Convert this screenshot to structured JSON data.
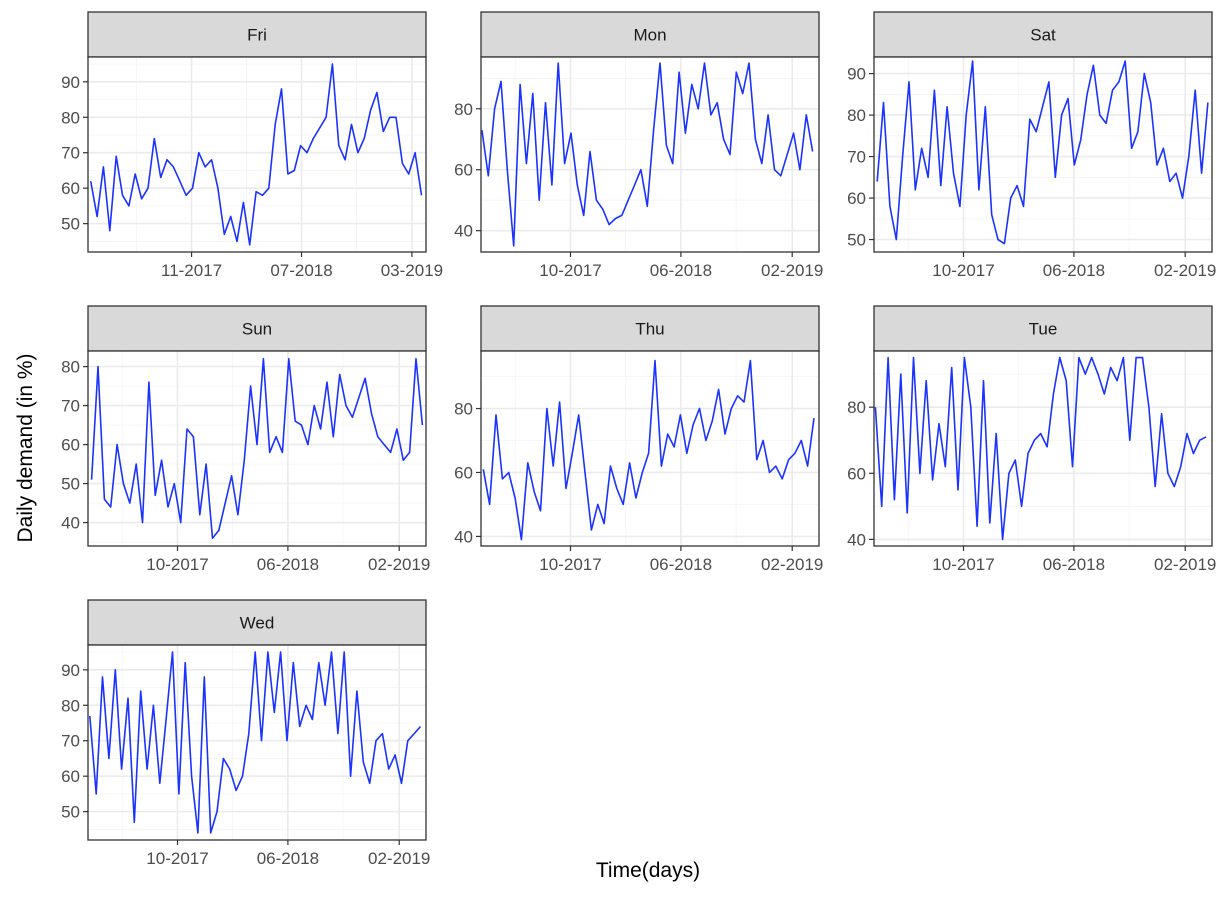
{
  "chart_data": {
    "type": "line",
    "facet_layout": "3 columns, 3 rows, facet_wrap with free y scales",
    "xlabel": "Time(days)",
    "ylabel": "Daily demand (in %)",
    "series_color": "#1a33ff",
    "grid": true,
    "legend": "none",
    "panels": [
      {
        "name": "Fri",
        "xlim": [
          "2017-03-18",
          "2019-04-01"
        ],
        "x_ticks": [
          "2017-11-01",
          "2018-07-01",
          "2019-03-01"
        ],
        "x_tick_labels": [
          "11-2017",
          "07-2018",
          "03-2019"
        ],
        "ylim": [
          42,
          97
        ],
        "y_ticks": [
          50,
          60,
          70,
          80,
          90
        ],
        "x": [
          "2017-03-24",
          "2017-04-07",
          "2017-04-21",
          "2017-05-05",
          "2017-05-19",
          "2017-06-02",
          "2017-06-16",
          "2017-06-30",
          "2017-07-14",
          "2017-07-28",
          "2017-08-11",
          "2017-08-25",
          "2017-09-08",
          "2017-09-22",
          "2017-10-06",
          "2017-10-20",
          "2017-11-03",
          "2017-11-17",
          "2017-12-01",
          "2017-12-15",
          "2017-12-29",
          "2018-01-12",
          "2018-01-26",
          "2018-02-09",
          "2018-02-23",
          "2018-03-09",
          "2018-03-23",
          "2018-04-06",
          "2018-04-20",
          "2018-05-04",
          "2018-05-18",
          "2018-06-01",
          "2018-06-15",
          "2018-06-29",
          "2018-07-13",
          "2018-07-27",
          "2018-08-10",
          "2018-08-24",
          "2018-09-07",
          "2018-09-21",
          "2018-10-05",
          "2018-10-19",
          "2018-11-02",
          "2018-11-16",
          "2018-11-30",
          "2018-12-14",
          "2018-12-28",
          "2019-01-11",
          "2019-01-25",
          "2019-02-08",
          "2019-02-22",
          "2019-03-08",
          "2019-03-22"
        ],
        "y": [
          62,
          52,
          66,
          48,
          69,
          58,
          55,
          64,
          57,
          60,
          74,
          63,
          68,
          66,
          62,
          58,
          60,
          70,
          66,
          68,
          60,
          47,
          52,
          45,
          56,
          44,
          59,
          58,
          60,
          78,
          88,
          64,
          65,
          72,
          70,
          74,
          77,
          80,
          95,
          72,
          68,
          78,
          70,
          74,
          82,
          87,
          76,
          80,
          80,
          67,
          64,
          70,
          58
        ]
      },
      {
        "name": "Mon",
        "xlim": [
          "2017-03-18",
          "2019-04-01"
        ],
        "x_ticks": [
          "2017-10-01",
          "2018-06-01",
          "2019-02-01"
        ],
        "x_tick_labels": [
          "10-2017",
          "06-2018",
          "02-2019"
        ],
        "ylim": [
          33,
          97
        ],
        "y_ticks": [
          40,
          60,
          80
        ],
        "x": [
          "2017-03-20",
          "2017-04-03",
          "2017-04-17",
          "2017-05-01",
          "2017-05-15",
          "2017-05-29",
          "2017-06-12",
          "2017-06-26",
          "2017-07-10",
          "2017-07-24",
          "2017-08-07",
          "2017-08-21",
          "2017-09-04",
          "2017-09-18",
          "2017-10-02",
          "2017-10-16",
          "2017-10-30",
          "2017-11-13",
          "2017-11-27",
          "2017-12-11",
          "2017-12-25",
          "2018-01-08",
          "2018-01-22",
          "2018-02-05",
          "2018-02-19",
          "2018-03-05",
          "2018-03-19",
          "2018-04-02",
          "2018-04-16",
          "2018-04-30",
          "2018-05-14",
          "2018-05-28",
          "2018-06-11",
          "2018-06-25",
          "2018-07-09",
          "2018-07-23",
          "2018-08-06",
          "2018-08-20",
          "2018-09-03",
          "2018-09-17",
          "2018-10-01",
          "2018-10-15",
          "2018-10-29",
          "2018-11-12",
          "2018-11-26",
          "2018-12-10",
          "2018-12-24",
          "2019-01-07",
          "2019-01-21",
          "2019-02-04",
          "2019-02-18",
          "2019-03-04",
          "2019-03-18"
        ],
        "y": [
          73,
          58,
          80,
          89,
          60,
          35,
          88,
          62,
          85,
          50,
          82,
          55,
          95,
          62,
          72,
          55,
          45,
          66,
          50,
          47,
          42,
          44,
          45,
          50,
          55,
          60,
          48,
          73,
          95,
          68,
          62,
          92,
          72,
          88,
          80,
          95,
          78,
          82,
          70,
          65,
          92,
          85,
          95,
          70,
          62,
          78,
          60,
          58,
          65,
          72,
          60,
          78,
          66
        ]
      },
      {
        "name": "Sat",
        "xlim": [
          "2017-03-18",
          "2019-04-01"
        ],
        "x_ticks": [
          "2017-10-01",
          "2018-06-01",
          "2019-02-01"
        ],
        "x_tick_labels": [
          "10-2017",
          "06-2018",
          "02-2019"
        ],
        "ylim": [
          47,
          94
        ],
        "y_ticks": [
          50,
          60,
          70,
          80,
          90
        ],
        "x": [
          "2017-03-25",
          "2017-04-08",
          "2017-04-22",
          "2017-05-06",
          "2017-05-20",
          "2017-06-03",
          "2017-06-17",
          "2017-07-01",
          "2017-07-15",
          "2017-07-29",
          "2017-08-12",
          "2017-08-26",
          "2017-09-09",
          "2017-09-23",
          "2017-10-07",
          "2017-10-21",
          "2017-11-04",
          "2017-11-18",
          "2017-12-02",
          "2017-12-16",
          "2017-12-30",
          "2018-01-13",
          "2018-01-27",
          "2018-02-10",
          "2018-02-24",
          "2018-03-10",
          "2018-03-24",
          "2018-04-07",
          "2018-04-21",
          "2018-05-05",
          "2018-05-19",
          "2018-06-02",
          "2018-06-16",
          "2018-06-30",
          "2018-07-14",
          "2018-07-28",
          "2018-08-11",
          "2018-08-25",
          "2018-09-08",
          "2018-09-22",
          "2018-10-06",
          "2018-10-20",
          "2018-11-03",
          "2018-11-17",
          "2018-12-01",
          "2018-12-15",
          "2018-12-29",
          "2019-01-12",
          "2019-01-26",
          "2019-02-09",
          "2019-02-23",
          "2019-03-09",
          "2019-03-23"
        ],
        "y": [
          64,
          83,
          58,
          50,
          70,
          88,
          62,
          72,
          65,
          86,
          63,
          82,
          66,
          58,
          80,
          93,
          62,
          82,
          56,
          50,
          49,
          60,
          63,
          58,
          79,
          76,
          82,
          88,
          65,
          80,
          84,
          68,
          74,
          85,
          92,
          80,
          78,
          86,
          88,
          93,
          72,
          76,
          90,
          83,
          68,
          72,
          64,
          66,
          60,
          70,
          86,
          66,
          83
        ]
      },
      {
        "name": "Sun",
        "xlim": [
          "2017-03-18",
          "2019-04-01"
        ],
        "x_ticks": [
          "2017-10-01",
          "2018-06-01",
          "2019-02-01"
        ],
        "x_tick_labels": [
          "10-2017",
          "06-2018",
          "02-2019"
        ],
        "ylim": [
          34,
          84
        ],
        "y_ticks": [
          40,
          50,
          60,
          70,
          80
        ],
        "x": [
          "2017-03-26",
          "2017-04-09",
          "2017-04-23",
          "2017-05-07",
          "2017-05-21",
          "2017-06-04",
          "2017-06-18",
          "2017-07-02",
          "2017-07-16",
          "2017-07-30",
          "2017-08-13",
          "2017-08-27",
          "2017-09-10",
          "2017-09-24",
          "2017-10-08",
          "2017-10-22",
          "2017-11-05",
          "2017-11-19",
          "2017-12-03",
          "2017-12-17",
          "2017-12-31",
          "2018-01-14",
          "2018-01-28",
          "2018-02-11",
          "2018-02-25",
          "2018-03-11",
          "2018-03-25",
          "2018-04-08",
          "2018-04-22",
          "2018-05-06",
          "2018-05-20",
          "2018-06-03",
          "2018-06-17",
          "2018-07-01",
          "2018-07-15",
          "2018-07-29",
          "2018-08-12",
          "2018-08-26",
          "2018-09-09",
          "2018-09-23",
          "2018-10-07",
          "2018-10-21",
          "2018-11-04",
          "2018-11-18",
          "2018-12-02",
          "2018-12-16",
          "2018-12-30",
          "2019-01-13",
          "2019-01-27",
          "2019-02-10",
          "2019-02-24",
          "2019-03-10",
          "2019-03-24"
        ],
        "y": [
          51,
          80,
          46,
          44,
          60,
          50,
          45,
          55,
          40,
          76,
          47,
          56,
          44,
          50,
          40,
          64,
          62,
          42,
          55,
          36,
          38,
          45,
          52,
          42,
          56,
          75,
          60,
          82,
          58,
          62,
          58,
          82,
          66,
          65,
          60,
          70,
          64,
          76,
          62,
          78,
          70,
          67,
          72,
          77,
          68,
          62,
          60,
          58,
          64,
          56,
          58,
          82,
          65
        ]
      },
      {
        "name": "Thu",
        "xlim": [
          "2017-03-18",
          "2019-04-01"
        ],
        "x_ticks": [
          "2017-10-01",
          "2018-06-01",
          "2019-02-01"
        ],
        "x_tick_labels": [
          "10-2017",
          "06-2018",
          "02-2019"
        ],
        "ylim": [
          37,
          98
        ],
        "y_ticks": [
          40,
          60,
          80
        ],
        "x": [
          "2017-03-23",
          "2017-04-06",
          "2017-04-20",
          "2017-05-04",
          "2017-05-18",
          "2017-06-01",
          "2017-06-15",
          "2017-06-29",
          "2017-07-13",
          "2017-07-27",
          "2017-08-10",
          "2017-08-24",
          "2017-09-07",
          "2017-09-21",
          "2017-10-05",
          "2017-10-19",
          "2017-11-02",
          "2017-11-16",
          "2017-11-30",
          "2017-12-14",
          "2017-12-28",
          "2018-01-11",
          "2018-01-25",
          "2018-02-08",
          "2018-02-22",
          "2018-03-08",
          "2018-03-22",
          "2018-04-05",
          "2018-04-19",
          "2018-05-03",
          "2018-05-17",
          "2018-05-31",
          "2018-06-14",
          "2018-06-28",
          "2018-07-12",
          "2018-07-26",
          "2018-08-09",
          "2018-08-23",
          "2018-09-06",
          "2018-09-20",
          "2018-10-04",
          "2018-10-18",
          "2018-11-01",
          "2018-11-15",
          "2018-11-29",
          "2018-12-13",
          "2018-12-27",
          "2019-01-10",
          "2019-01-24",
          "2019-02-07",
          "2019-02-21",
          "2019-03-07",
          "2019-03-21"
        ],
        "y": [
          61,
          50,
          78,
          58,
          60,
          52,
          39,
          63,
          54,
          48,
          80,
          62,
          82,
          55,
          66,
          78,
          60,
          42,
          50,
          44,
          62,
          55,
          50,
          63,
          52,
          60,
          66,
          95,
          62,
          72,
          68,
          78,
          66,
          75,
          80,
          70,
          76,
          86,
          72,
          80,
          84,
          82,
          95,
          64,
          70,
          60,
          62,
          58,
          64,
          66,
          70,
          62,
          77
        ]
      },
      {
        "name": "Tue",
        "xlim": [
          "2017-03-18",
          "2019-04-01"
        ],
        "x_ticks": [
          "2017-10-01",
          "2018-06-01",
          "2019-02-01"
        ],
        "x_tick_labels": [
          "10-2017",
          "06-2018",
          "02-2019"
        ],
        "ylim": [
          38,
          97
        ],
        "y_ticks": [
          40,
          60,
          80
        ],
        "x": [
          "2017-03-21",
          "2017-04-04",
          "2017-04-18",
          "2017-05-02",
          "2017-05-16",
          "2017-05-30",
          "2017-06-13",
          "2017-06-27",
          "2017-07-11",
          "2017-07-25",
          "2017-08-08",
          "2017-08-22",
          "2017-09-05",
          "2017-09-19",
          "2017-10-03",
          "2017-10-17",
          "2017-10-31",
          "2017-11-14",
          "2017-11-28",
          "2017-12-12",
          "2017-12-26",
          "2018-01-09",
          "2018-01-23",
          "2018-02-06",
          "2018-02-20",
          "2018-03-06",
          "2018-03-20",
          "2018-04-03",
          "2018-04-17",
          "2018-05-01",
          "2018-05-15",
          "2018-05-29",
          "2018-06-12",
          "2018-06-26",
          "2018-07-10",
          "2018-07-24",
          "2018-08-07",
          "2018-08-21",
          "2018-09-04",
          "2018-09-18",
          "2018-10-02",
          "2018-10-16",
          "2018-10-30",
          "2018-11-13",
          "2018-11-27",
          "2018-12-11",
          "2018-12-25",
          "2019-01-08",
          "2019-01-22",
          "2019-02-05",
          "2019-02-19",
          "2019-03-05",
          "2019-03-19"
        ],
        "y": [
          80,
          50,
          95,
          52,
          90,
          48,
          95,
          60,
          88,
          58,
          75,
          62,
          92,
          55,
          95,
          80,
          44,
          88,
          45,
          72,
          40,
          60,
          64,
          50,
          66,
          70,
          72,
          68,
          84,
          95,
          88,
          62,
          95,
          90,
          95,
          90,
          84,
          92,
          88,
          95,
          70,
          95,
          95,
          80,
          56,
          78,
          60,
          56,
          62,
          72,
          66,
          70,
          71
        ]
      },
      {
        "name": "Wed",
        "xlim": [
          "2017-03-18",
          "2019-04-01"
        ],
        "x_ticks": [
          "2017-10-01",
          "2018-06-01",
          "2019-02-01"
        ],
        "x_tick_labels": [
          "10-2017",
          "06-2018",
          "02-2019"
        ],
        "ylim": [
          42,
          97
        ],
        "y_ticks": [
          50,
          60,
          70,
          80,
          90
        ],
        "x": [
          "2017-03-22",
          "2017-04-05",
          "2017-04-19",
          "2017-05-03",
          "2017-05-17",
          "2017-05-31",
          "2017-06-14",
          "2017-06-28",
          "2017-07-12",
          "2017-07-26",
          "2017-08-09",
          "2017-08-23",
          "2017-09-06",
          "2017-09-20",
          "2017-10-04",
          "2017-10-18",
          "2017-11-01",
          "2017-11-15",
          "2017-11-29",
          "2017-12-13",
          "2017-12-27",
          "2018-01-10",
          "2018-01-24",
          "2018-02-07",
          "2018-02-21",
          "2018-03-07",
          "2018-03-21",
          "2018-04-04",
          "2018-04-18",
          "2018-05-02",
          "2018-05-16",
          "2018-05-30",
          "2018-06-13",
          "2018-06-27",
          "2018-07-11",
          "2018-07-25",
          "2018-08-08",
          "2018-08-22",
          "2018-09-05",
          "2018-09-19",
          "2018-10-03",
          "2018-10-17",
          "2018-10-31",
          "2018-11-14",
          "2018-11-28",
          "2018-12-12",
          "2018-12-26",
          "2019-01-09",
          "2019-01-23",
          "2019-02-06",
          "2019-02-20",
          "2019-03-06",
          "2019-03-20"
        ],
        "y": [
          77,
          55,
          88,
          65,
          90,
          62,
          82,
          47,
          84,
          62,
          80,
          58,
          76,
          95,
          55,
          92,
          60,
          44,
          88,
          44,
          50,
          65,
          62,
          56,
          60,
          72,
          95,
          70,
          95,
          78,
          95,
          70,
          92,
          74,
          80,
          76,
          92,
          80,
          95,
          72,
          95,
          60,
          84,
          64,
          58,
          70,
          72,
          62,
          66,
          58,
          70,
          72,
          74
        ]
      }
    ]
  }
}
